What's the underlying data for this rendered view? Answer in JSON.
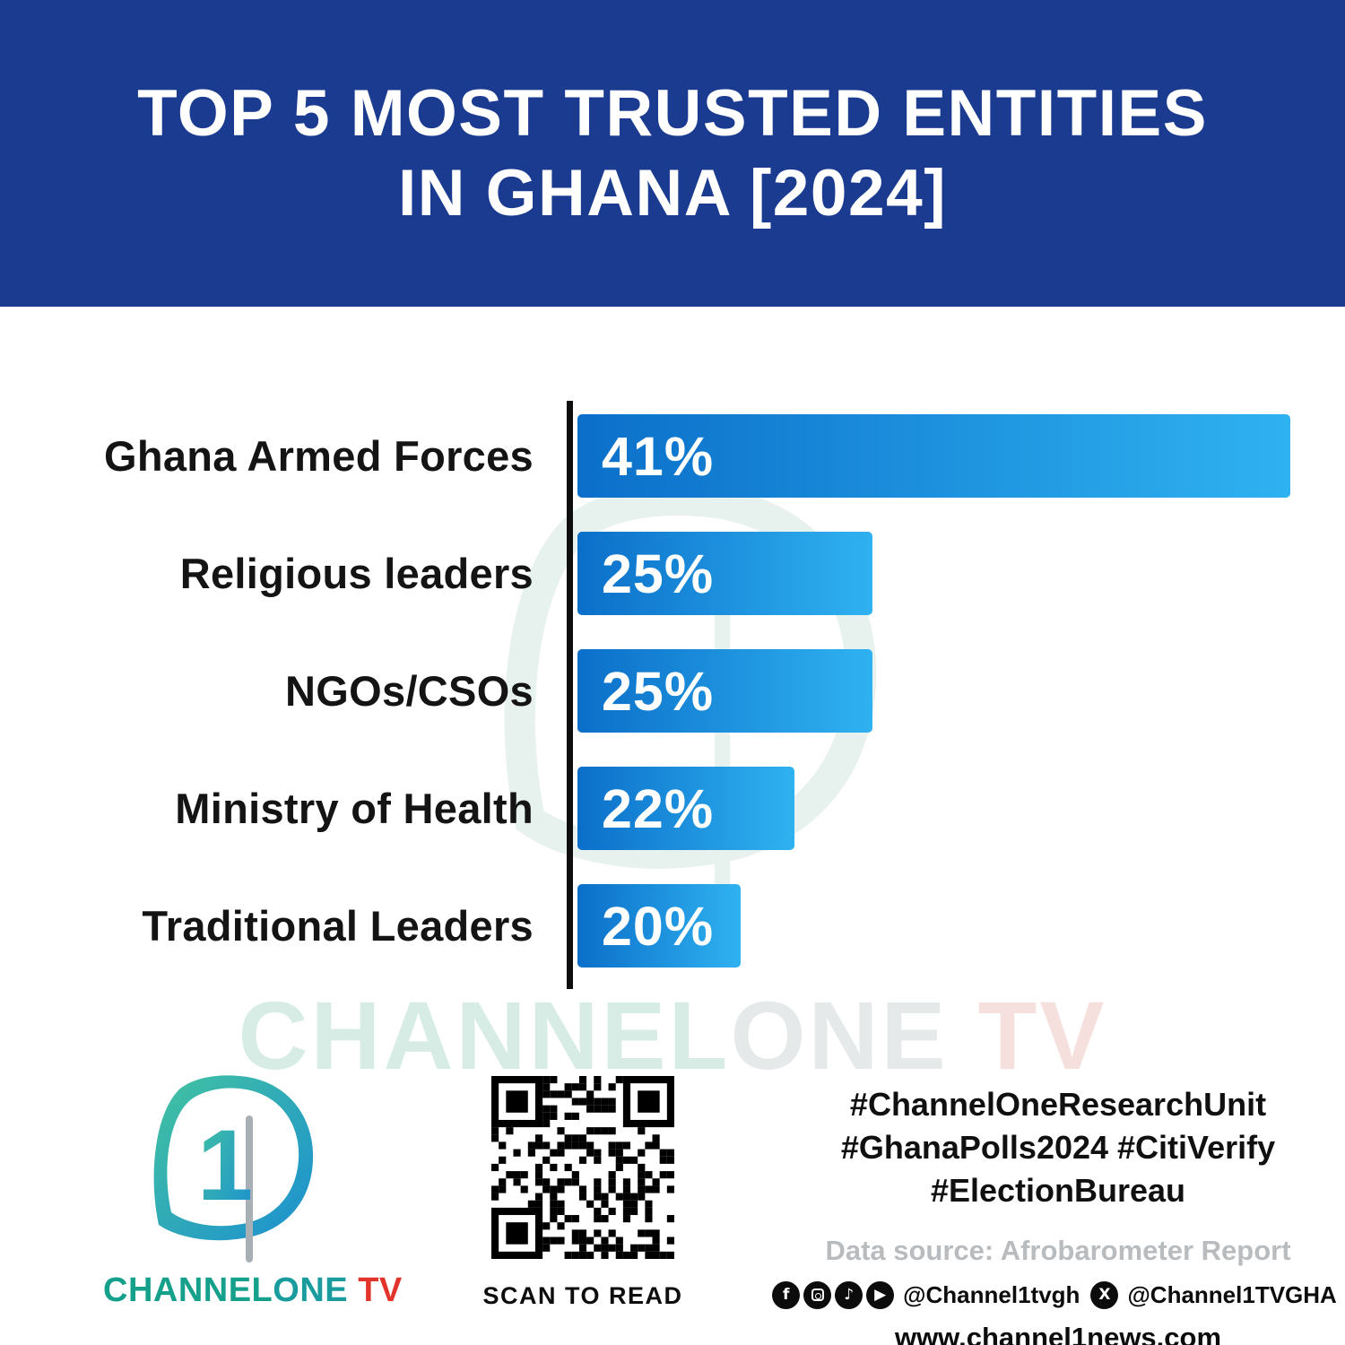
{
  "header": {
    "title_line1": "TOP 5 MOST TRUSTED ENTITIES",
    "title_line2": "IN GHANA [2024]"
  },
  "chart_data": {
    "type": "bar",
    "orientation": "horizontal",
    "title": "TOP 5 MOST TRUSTED ENTITIES IN GHANA [2024]",
    "categories": [
      "Ghana Armed Forces",
      "Religious leaders",
      "NGOs/CSOs",
      "Ministry of Health",
      "Traditional Leaders"
    ],
    "values": [
      41,
      25,
      25,
      22,
      20
    ],
    "labels": [
      "41%",
      "25%",
      "25%",
      "22%",
      "20%"
    ],
    "xlim": [
      0,
      41
    ],
    "grid": false,
    "legend": "none",
    "bar_visual_fractions": [
      1.0,
      0.414,
      0.414,
      0.304,
      0.229
    ],
    "bar_gradient": [
      "#0b6fc9",
      "#2fb2f1"
    ],
    "axis_color": "#0e0e0e"
  },
  "watermark": {
    "part1": "CHANNEL",
    "part2": "ONE",
    "part3": " TV"
  },
  "footer": {
    "logo_digit": "1",
    "brand_channel": "CHANNEL",
    "brand_one": "ONE",
    "brand_tv": " TV",
    "qr_caption": "SCAN TO READ",
    "hashtags_line1": "#ChannelOneResearchUnit",
    "hashtags_line2": "#GhanaPolls2024 #CitiVerify",
    "hashtags_line3": "#ElectionBureau",
    "data_source": "Data source: Afrobarometer Report",
    "social_icons": [
      "facebook-icon",
      "instagram-icon",
      "tiktok-icon",
      "youtube-icon"
    ],
    "social_handle_main": "@Channel1tvgh",
    "social_handle_x": "@Channel1TVGHA",
    "website": "www.channel1news.com"
  },
  "colors": {
    "header_bg": "#1a3b8f",
    "bar_start": "#0b6fc9",
    "bar_end": "#2fb2f1",
    "brand_teal": "#15a08c",
    "tv_red": "#e3342c"
  }
}
